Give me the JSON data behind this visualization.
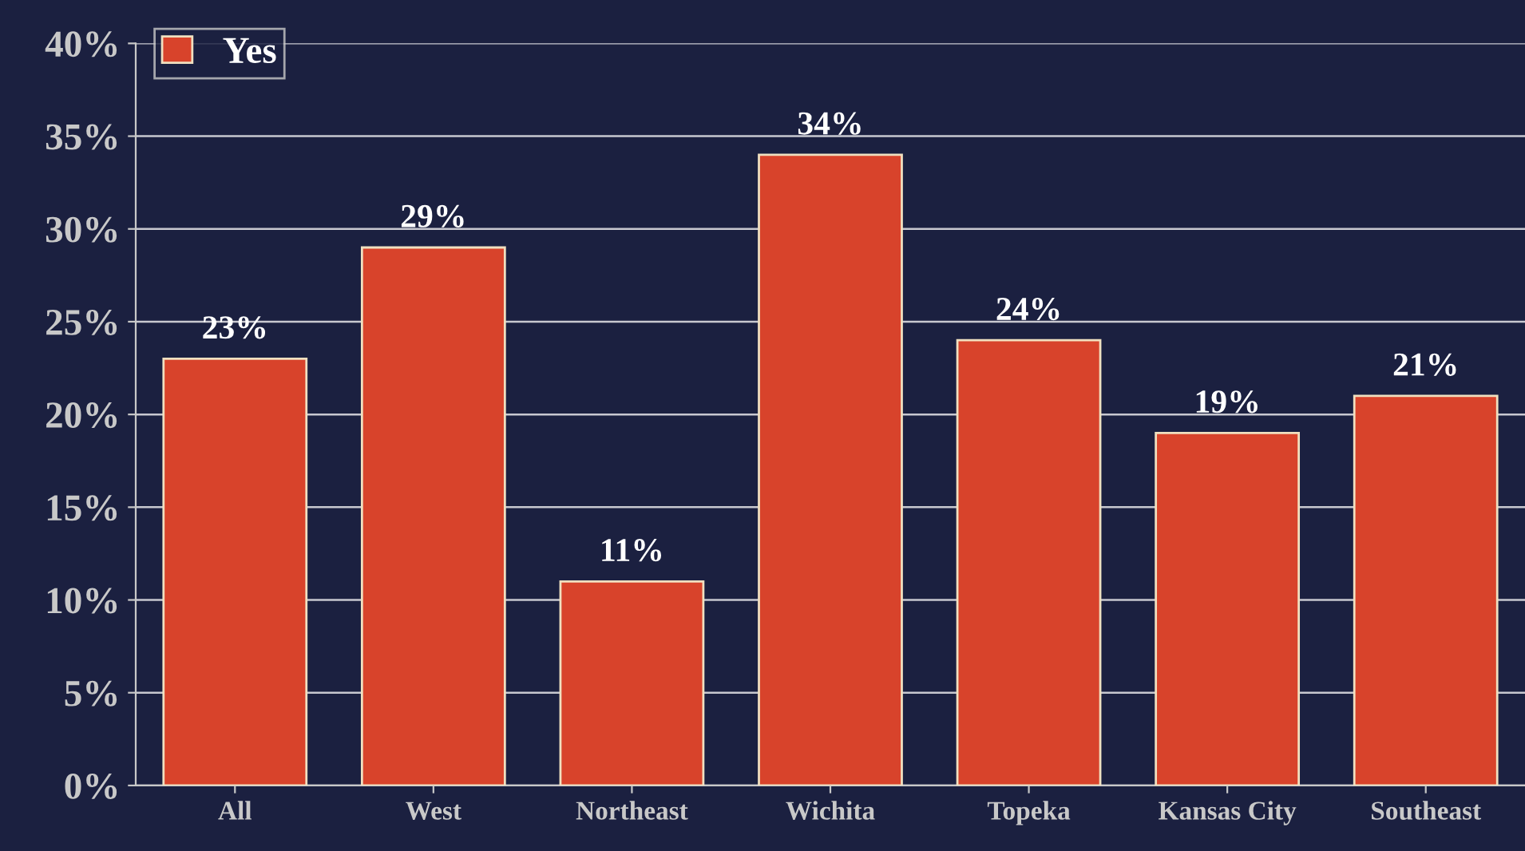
{
  "chart_data": {
    "type": "bar",
    "categories": [
      "All",
      "West",
      "Northeast",
      "Wichita",
      "Topeka",
      "Kansas City",
      "Southeast"
    ],
    "series": [
      {
        "name": "Yes",
        "color": "#d8432b",
        "values": [
          23,
          29,
          11,
          34,
          24,
          19,
          21
        ],
        "value_labels": [
          "23%",
          "29%",
          "11%",
          "34%",
          "24%",
          "19%",
          "21%"
        ]
      }
    ],
    "ylim": [
      0,
      40
    ],
    "yticks": [
      {
        "value": 0,
        "label": "0%"
      },
      {
        "value": 5,
        "label": "5%"
      },
      {
        "value": 10,
        "label": "10%"
      },
      {
        "value": 15,
        "label": "15%"
      },
      {
        "value": 20,
        "label": "20%"
      },
      {
        "value": 25,
        "label": "25%"
      },
      {
        "value": 30,
        "label": "30%"
      },
      {
        "value": 35,
        "label": "35%"
      },
      {
        "value": 40,
        "label": "40%"
      }
    ],
    "grid": "y",
    "legend": "top left"
  }
}
